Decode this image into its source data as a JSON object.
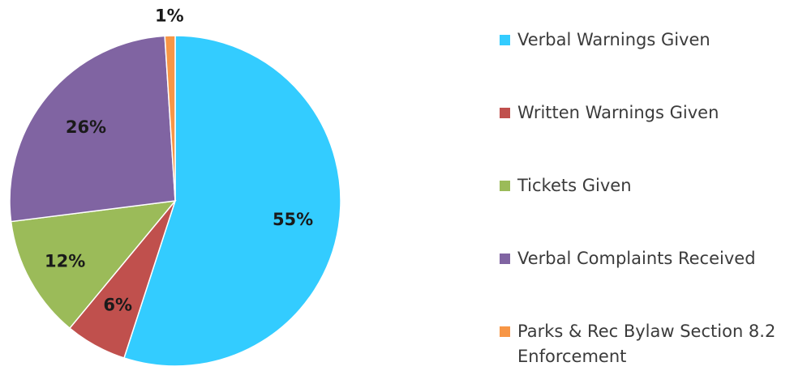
{
  "chart_data": {
    "type": "pie",
    "title": "",
    "start_angle_deg": -90,
    "direction": "clockwise",
    "legend_position": "right",
    "slices": [
      {
        "name": "Verbal Warnings Given",
        "value": 55,
        "label": "55%",
        "color": "#33CCFF"
      },
      {
        "name": "Written Warnings Given",
        "value": 6,
        "label": "6%",
        "color": "#C0504D"
      },
      {
        "name": "Tickets Given",
        "value": 12,
        "label": "12%",
        "color": "#9BBB59"
      },
      {
        "name": "Verbal Complaints Received",
        "value": 26,
        "label": "26%",
        "color": "#8064A2"
      },
      {
        "name": "Parks & Rec Bylaw Section 8.2 Enforcement",
        "value": 1,
        "label": "1%",
        "color": "#F79646"
      }
    ]
  }
}
